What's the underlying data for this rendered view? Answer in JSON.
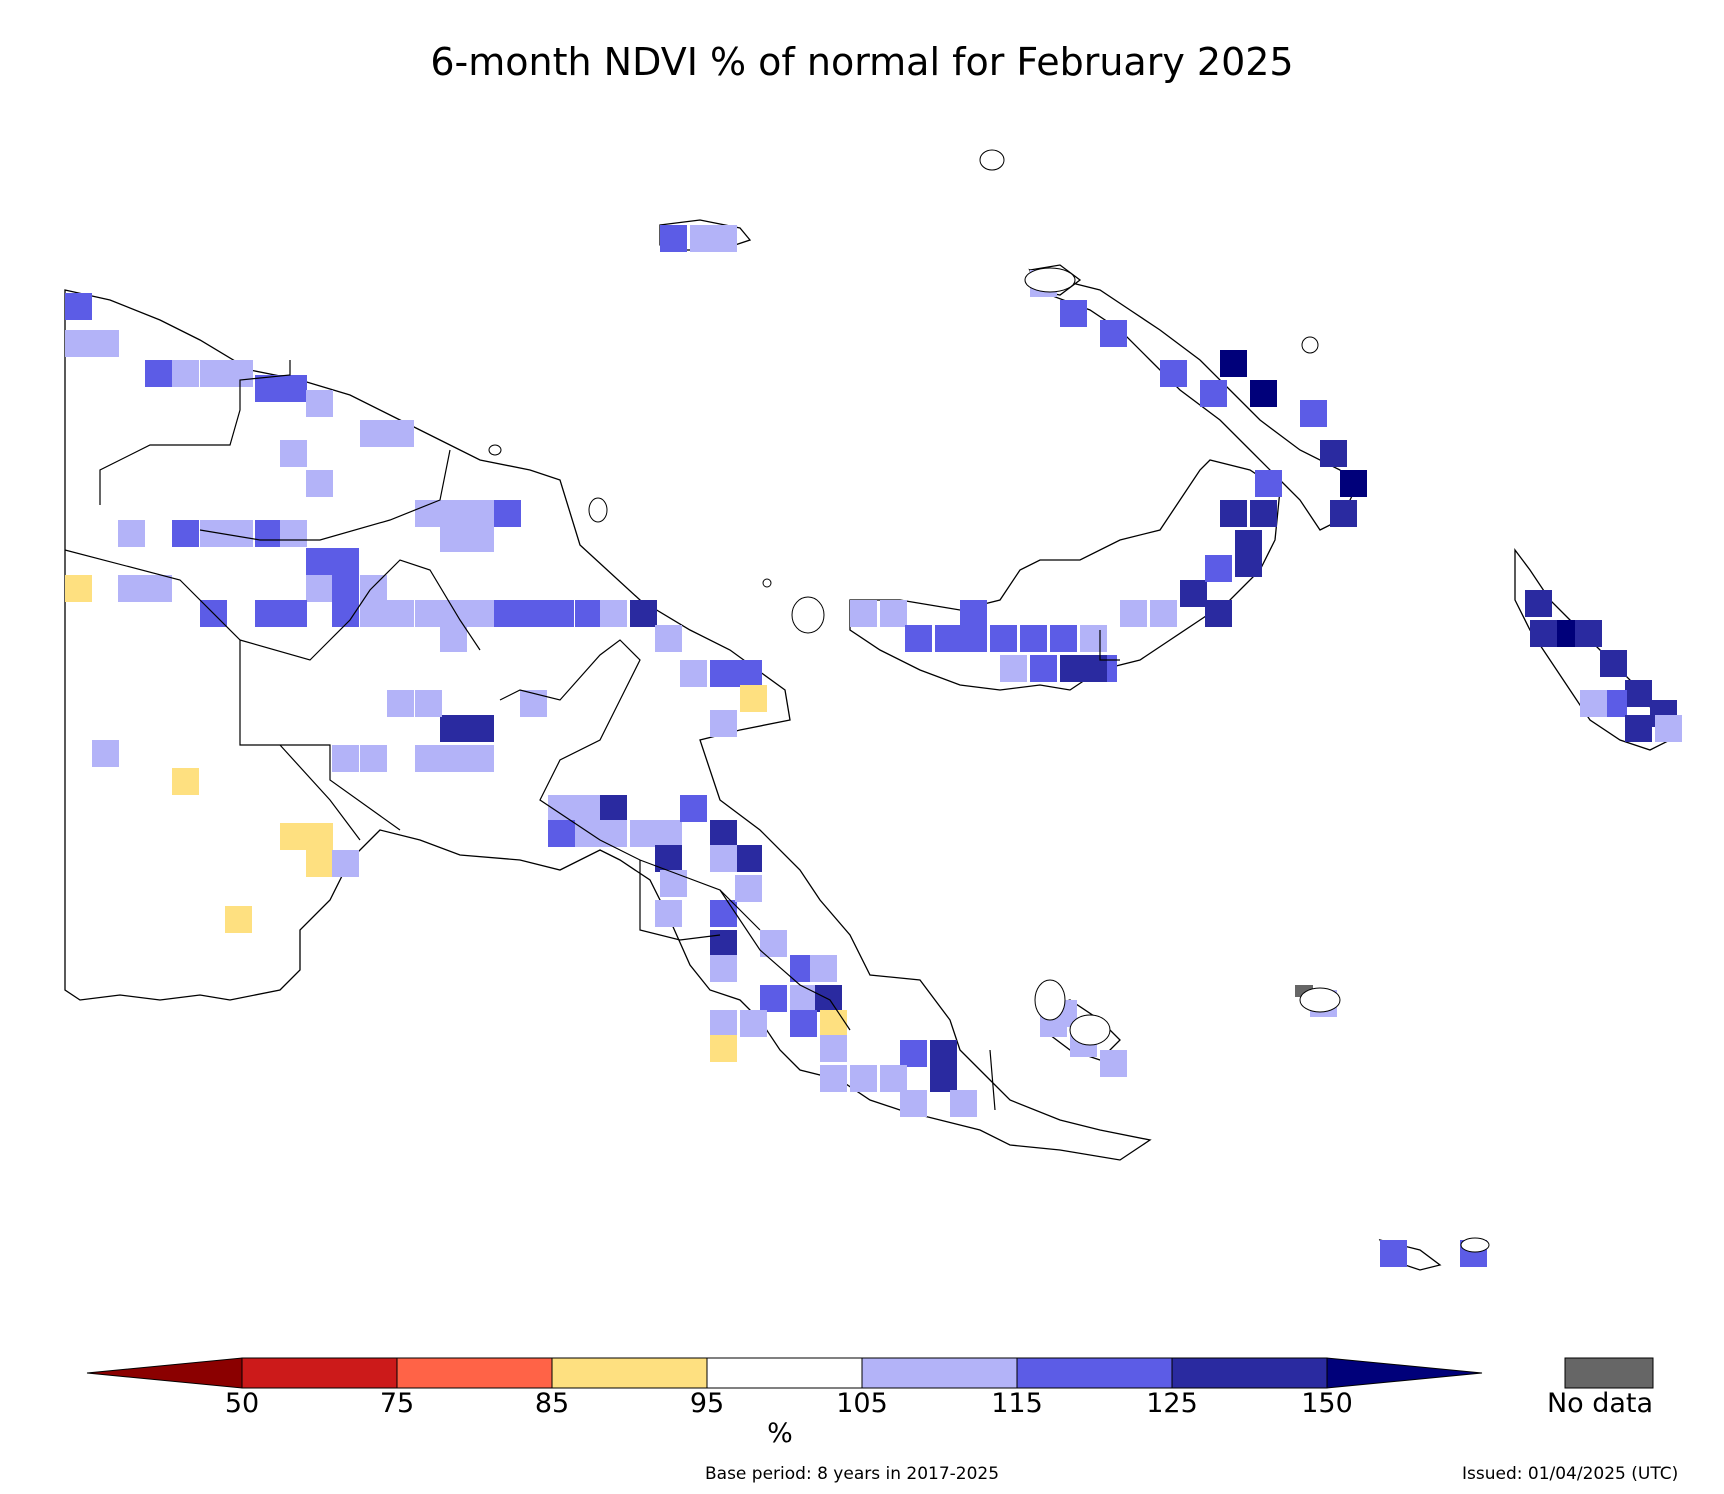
{
  "title": "6-month NDVI % of normal for February 2025",
  "legend": {
    "ticks": [
      "50",
      "75",
      "85",
      "95",
      "105",
      "115",
      "125",
      "150"
    ],
    "unit": "%",
    "bins": [
      {
        "range": "<50",
        "color": "#8b0000"
      },
      {
        "range": "50-75",
        "color": "#cc1a1a"
      },
      {
        "range": "75-85",
        "color": "#ff6347"
      },
      {
        "range": "85-95",
        "color": "#fee080"
      },
      {
        "range": "95-105",
        "color": "#ffffff"
      },
      {
        "range": "105-115",
        "color": "#b3b3f8"
      },
      {
        "range": "115-125",
        "color": "#5c5ce6"
      },
      {
        "range": "125-150",
        "color": "#2a2aa0"
      },
      {
        "range": ">150",
        "color": "#00007a"
      }
    ],
    "no_data_label": "No data",
    "no_data_color": "#666666"
  },
  "footer": {
    "base_period": "Base period: 8 years in 2017-2025",
    "issued": "Issued: 01/04/2025 (UTC)"
  }
}
